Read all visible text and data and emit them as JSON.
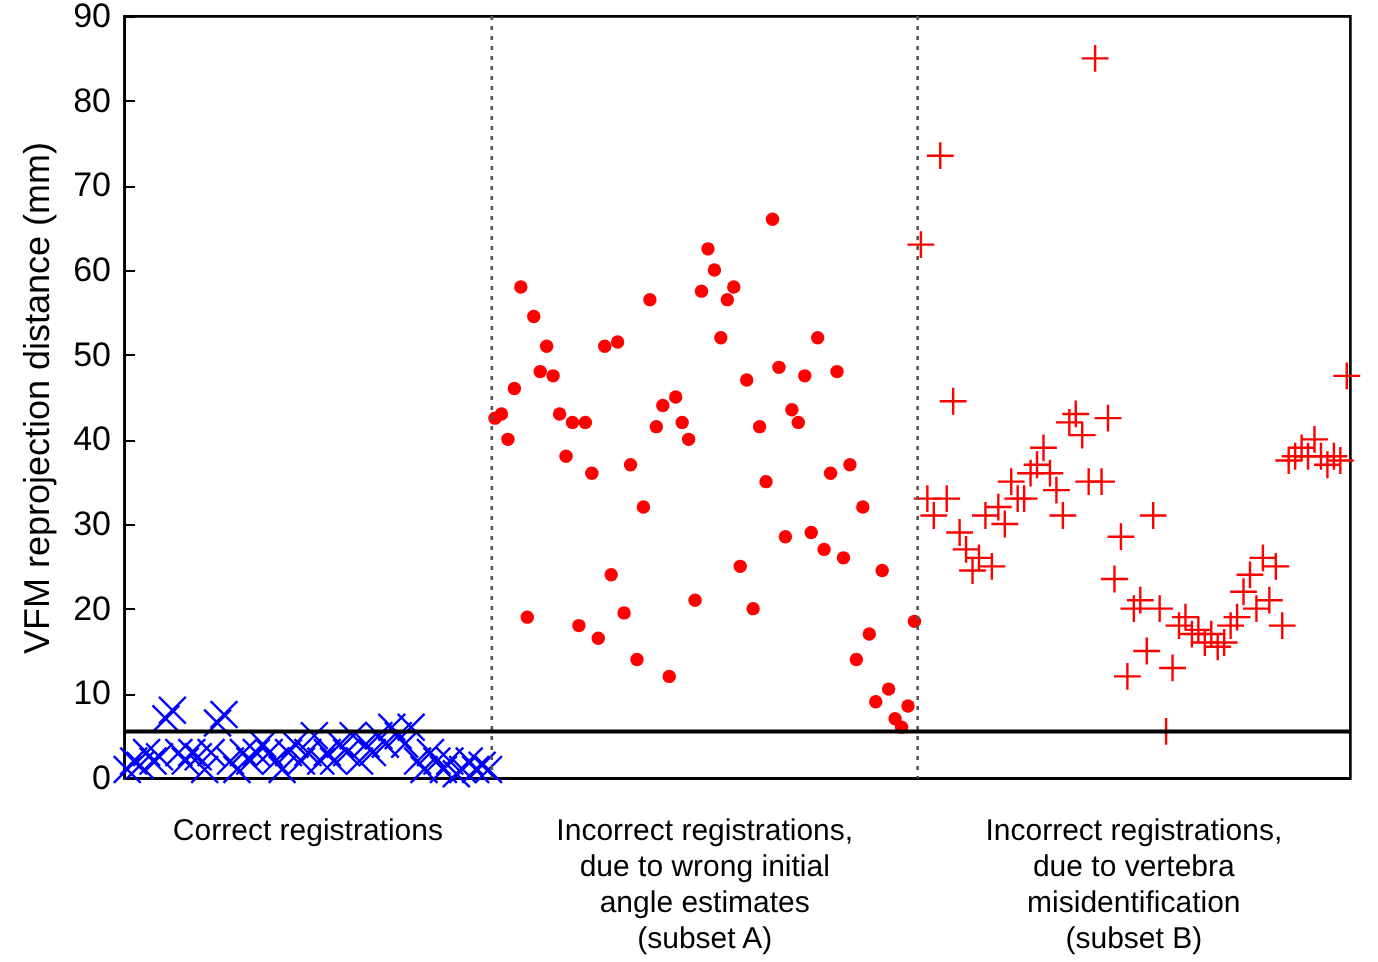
{
  "chart_data": {
    "type": "scatter",
    "ylabel": "VFM reprojection distance (mm)",
    "ylim": [
      0,
      90
    ],
    "yticks": [
      0,
      10,
      20,
      30,
      40,
      50,
      60,
      70,
      80,
      90
    ],
    "tick_labels": "y",
    "categories": [
      null,
      null,
      null,
      null,
      null,
      null,
      null,
      null,
      null,
      null,
      null,
      null,
      null,
      null,
      null,
      null,
      null,
      null,
      null,
      null,
      null,
      null,
      null,
      null,
      null,
      null,
      null,
      null,
      null,
      null,
      null,
      null,
      null,
      null,
      null,
      null,
      null,
      null,
      null,
      null,
      null,
      null,
      null,
      null,
      null,
      null,
      null,
      null,
      null,
      null,
      null,
      null,
      null,
      null,
      null,
      null,
      null,
      null,
      null,
      null,
      null,
      null,
      null,
      null,
      null,
      null,
      null,
      null,
      null,
      null,
      null,
      null,
      null,
      null,
      null,
      null,
      null,
      null,
      null,
      null,
      null,
      null,
      null,
      null,
      null,
      null,
      null,
      null,
      null,
      null,
      null,
      null,
      null,
      null,
      null,
      null,
      null,
      null,
      null,
      null,
      null,
      null,
      null,
      null,
      null,
      null,
      null,
      null,
      null,
      null,
      null,
      null,
      null,
      null,
      null,
      null,
      null,
      null,
      null,
      null,
      null,
      null,
      null,
      null,
      null,
      null,
      null,
      null,
      null,
      null,
      null,
      null,
      null,
      null,
      null,
      null,
      null,
      null,
      null,
      null,
      null,
      null,
      null,
      null,
      null,
      null,
      null,
      null,
      null,
      null,
      null,
      null,
      null,
      null,
      null,
      null,
      null,
      null,
      null,
      null,
      null,
      null,
      null,
      null,
      null,
      null,
      null,
      null,
      null,
      null,
      null,
      null,
      null,
      null,
      null,
      null,
      null,
      null,
      null,
      null,
      null,
      null,
      null,
      null,
      null,
      null,
      null,
      null,
      null,
      null
    ],
    "series": [
      {
        "color": "#0000ff",
        "marker": "cross",
        "values": [
          1,
          2,
          1.5,
          3,
          2,
          2.5,
          7,
          8,
          3,
          2,
          3,
          2.5,
          1,
          3,
          6.5,
          7.5,
          2,
          1,
          3,
          2,
          3,
          4,
          3,
          2,
          1,
          3,
          4,
          2,
          3,
          5,
          2,
          3,
          2,
          4,
          3,
          5,
          2,
          4,
          3,
          5,
          4,
          6,
          5,
          4,
          6,
          2,
          1,
          3,
          2,
          1,
          2,
          0.5,
          1,
          2,
          1,
          1.5,
          1,
          null,
          null,
          null,
          null,
          null,
          null,
          null,
          null,
          null,
          null,
          null,
          null,
          null,
          null,
          null,
          null,
          null,
          null,
          null,
          null,
          null,
          null,
          null,
          null,
          null,
          null,
          null,
          null,
          null,
          null,
          null,
          null,
          null,
          null,
          null,
          null,
          null,
          null,
          null,
          null,
          null,
          null,
          null,
          null,
          null,
          null,
          null,
          null,
          null,
          null,
          null,
          null,
          null,
          null,
          null,
          null,
          null,
          null,
          null,
          null,
          null,
          null,
          null,
          null,
          null,
          null,
          null,
          null,
          null,
          null,
          null,
          null,
          null,
          null,
          null,
          null,
          null,
          null,
          null,
          null,
          null,
          null,
          null,
          null,
          null,
          null,
          null,
          null,
          null,
          null,
          null,
          null,
          null,
          null,
          null,
          null,
          null,
          null,
          null,
          null,
          null,
          null,
          null,
          null,
          null,
          null,
          null,
          null,
          null,
          null,
          null,
          null,
          null,
          null,
          null,
          null,
          null,
          null,
          null,
          null,
          null,
          null,
          null,
          null,
          null,
          null,
          null,
          null,
          null,
          null,
          null,
          null,
          null
        ]
      },
      {
        "color": "#ff0000",
        "marker": "circle",
        "values": [
          null,
          null,
          null,
          null,
          null,
          null,
          null,
          null,
          null,
          null,
          null,
          null,
          null,
          null,
          null,
          null,
          null,
          null,
          null,
          null,
          null,
          null,
          null,
          null,
          null,
          null,
          null,
          null,
          null,
          null,
          null,
          null,
          null,
          null,
          null,
          null,
          null,
          null,
          null,
          null,
          null,
          null,
          null,
          null,
          null,
          null,
          null,
          null,
          null,
          null,
          null,
          null,
          null,
          null,
          null,
          null,
          null,
          42.5,
          43,
          40,
          46,
          58,
          19,
          54.5,
          48,
          51,
          47.5,
          43,
          38,
          42,
          18,
          42,
          36,
          16.5,
          51,
          24,
          51.5,
          19.5,
          37,
          14,
          32,
          56.5,
          41.5,
          44,
          12,
          45,
          42,
          40,
          21,
          57.5,
          62.5,
          60,
          52,
          56.5,
          58,
          25,
          47,
          20,
          41.5,
          35,
          66,
          48.5,
          28.5,
          43.5,
          42,
          47.5,
          29,
          52,
          27,
          36,
          48,
          26,
          37,
          14,
          32,
          17,
          9,
          24.5,
          10.5,
          7,
          6,
          8.5,
          18.5,
          null,
          null,
          null,
          null,
          null,
          null,
          null,
          null,
          null,
          null,
          null,
          null,
          null,
          null,
          null,
          null,
          null,
          null,
          null,
          null,
          null,
          null,
          null,
          null,
          null,
          null,
          null,
          null,
          null,
          null,
          null,
          null,
          null,
          null,
          null,
          null,
          null,
          null,
          null,
          null,
          null,
          null,
          null,
          null,
          null,
          null,
          null,
          null,
          null,
          null,
          null,
          null,
          null,
          null,
          null,
          null,
          null,
          null,
          null,
          null,
          null,
          null,
          null,
          null,
          null,
          null,
          null
        ]
      },
      {
        "color": "#ff0000",
        "marker": "plus",
        "values": [
          null,
          null,
          null,
          null,
          null,
          null,
          null,
          null,
          null,
          null,
          null,
          null,
          null,
          null,
          null,
          null,
          null,
          null,
          null,
          null,
          null,
          null,
          null,
          null,
          null,
          null,
          null,
          null,
          null,
          null,
          null,
          null,
          null,
          null,
          null,
          null,
          null,
          null,
          null,
          null,
          null,
          null,
          null,
          null,
          null,
          null,
          null,
          null,
          null,
          null,
          null,
          null,
          null,
          null,
          null,
          null,
          null,
          null,
          null,
          null,
          null,
          null,
          null,
          null,
          null,
          null,
          null,
          null,
          null,
          null,
          null,
          null,
          null,
          null,
          null,
          null,
          null,
          null,
          null,
          null,
          null,
          null,
          null,
          null,
          null,
          null,
          null,
          null,
          null,
          null,
          null,
          null,
          null,
          null,
          null,
          null,
          null,
          null,
          null,
          null,
          null,
          null,
          null,
          null,
          null,
          null,
          null,
          null,
          null,
          null,
          null,
          null,
          null,
          null,
          null,
          null,
          null,
          null,
          null,
          null,
          null,
          null,
          null,
          63,
          33,
          31,
          73.5,
          33,
          44.5,
          29,
          27,
          24.5,
          26,
          31,
          25,
          32,
          30,
          35,
          33,
          33,
          36,
          37,
          39,
          36,
          34,
          31,
          42,
          43,
          40.5,
          35,
          85,
          35,
          42.5,
          23.5,
          28.5,
          12,
          20,
          21,
          15,
          31,
          20,
          5.5,
          13,
          18,
          19,
          17,
          17.5,
          16,
          17,
          15.5,
          16,
          18,
          19,
          22,
          24,
          20,
          26,
          21,
          25,
          18,
          37.5,
          38,
          39,
          38,
          40,
          38,
          37,
          38,
          37.5,
          47.5
        ]
      }
    ],
    "ref_lines": [
      {
        "axis": "y",
        "value": 5.5,
        "color": "#000000",
        "line_style": "solid"
      }
    ],
    "annotations": [
      "Correct registrations",
      "Incorrect registrations,\ndue to wrong initial\nangle estimates\n(subset A)",
      "Incorrect registrations,\ndue to vertebra\nmisidentification\n(subset B)"
    ]
  }
}
